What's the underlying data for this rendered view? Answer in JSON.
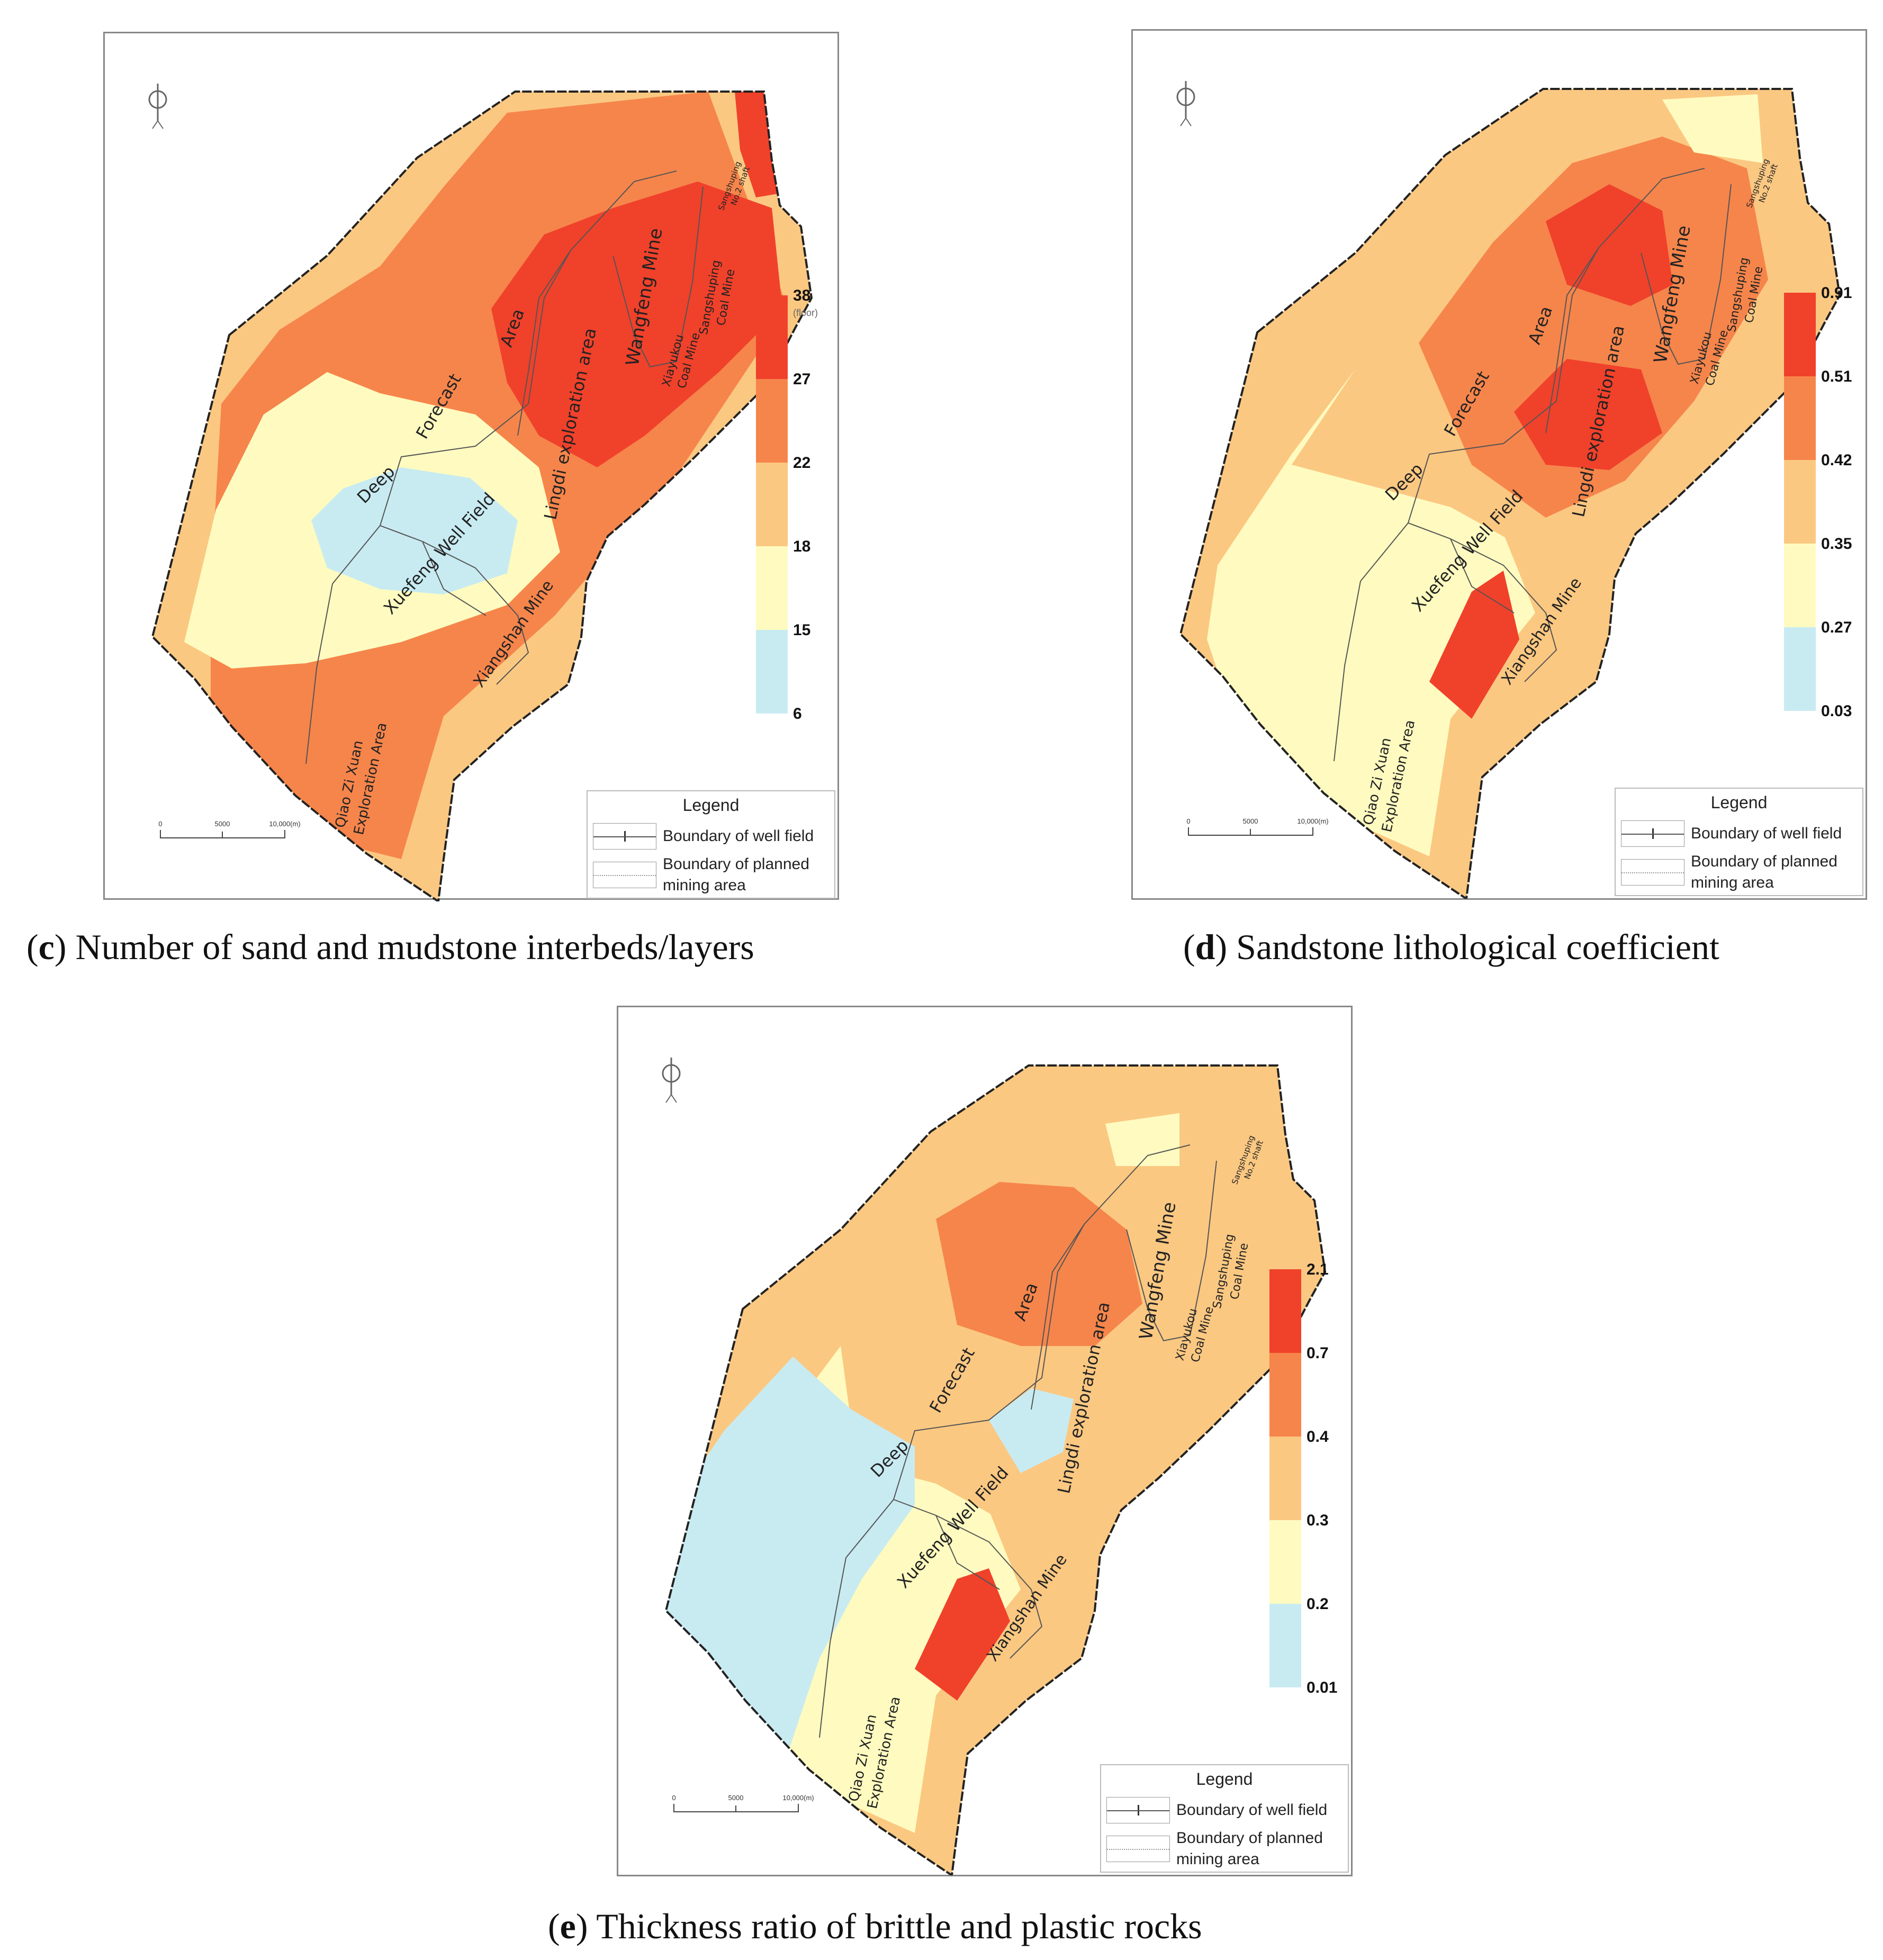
{
  "panels": [
    {
      "id": "c",
      "caption_letter": "c",
      "caption_text": ") Number of sand and mudstone interbeds/layers",
      "scale_ticks": [
        "38",
        "27",
        "22",
        "18",
        "15",
        "6"
      ],
      "scale_unit": "(floor)",
      "scale_colors": [
        "#f0412b",
        "#f6854b",
        "#fbc882",
        "#fffbc0",
        "#c8ebf2"
      ]
    },
    {
      "id": "d",
      "caption_letter": "d",
      "caption_text": ") Sandstone lithological coefficient",
      "scale_ticks": [
        "0.91",
        "0.51",
        "0.42",
        "0.35",
        "0.27",
        "0.03"
      ],
      "scale_unit": "",
      "scale_colors": [
        "#f0412b",
        "#f6854b",
        "#fbc882",
        "#fffbc0",
        "#c8ebf2"
      ]
    },
    {
      "id": "e",
      "caption_letter": "e",
      "caption_text": ") Thickness ratio of brittle and plastic rocks",
      "scale_ticks": [
        "2.1",
        "0.7",
        "0.4",
        "0.3",
        "0.2",
        "0.01"
      ],
      "scale_unit": "",
      "scale_colors": [
        "#f0412b",
        "#f6854b",
        "#fbc882",
        "#fffbc0",
        "#c8ebf2"
      ]
    }
  ],
  "map_labels": {
    "wangfeng": "Wangfeng Mine",
    "area": "Area",
    "forecast": "Forecast",
    "deep": "Deep",
    "lingdi": "Lingdi exploration area",
    "xuefeng": "Xuefeng Well Field",
    "xiangshan": "Xiangshan Mine",
    "qiaozixuan_1": "Qiao Zi Xuan",
    "qiaozixuan_2": "Exploration Area",
    "xiayukou_1": "Xiayukou",
    "xiayukou_2": "Coal Mine",
    "sangshuping_1": "Sangshuping",
    "sangshuping_2": "Coal Mine",
    "sangshuping2_1": "Sangshuping",
    "sangshuping2_2": "No.2 shaft"
  },
  "scale_bar": {
    "t0": "0",
    "t1": "5000",
    "t2": "10,000(m)"
  },
  "legend": {
    "title": "Legend",
    "item1": "Boundary of well field",
    "item2a": "Boundary of planned",
    "item2b": "mining area"
  }
}
